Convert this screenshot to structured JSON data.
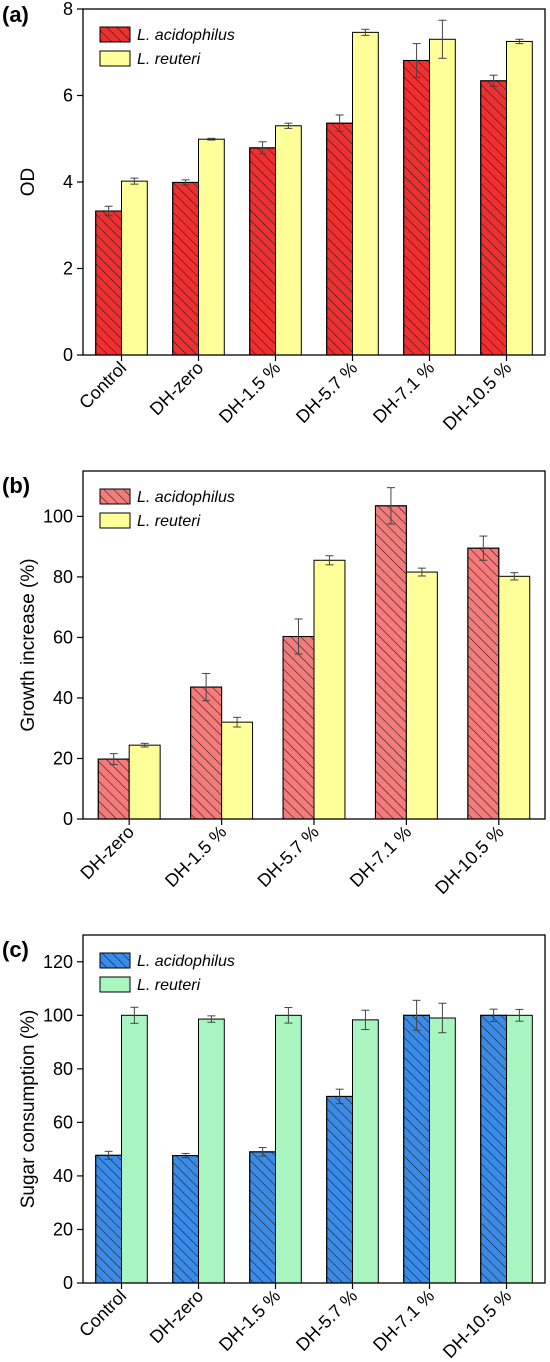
{
  "chart_data": [
    {
      "panel_label": "(a)",
      "type": "bar",
      "ylabel": "OD",
      "xlabel": "",
      "ylim": [
        0,
        8
      ],
      "yticks": [
        0,
        2,
        4,
        6,
        8
      ],
      "categories": [
        "Control",
        "DH-zero",
        "DH-1.5 %",
        "DH-5.7 %",
        "DH-7.1 %",
        "DH-10.5 %"
      ],
      "series": [
        {
          "name": "L. acidophilus",
          "values": [
            3.33,
            3.99,
            4.79,
            5.36,
            6.81,
            6.34
          ],
          "errors": [
            0.11,
            0.06,
            0.14,
            0.19,
            0.39,
            0.13
          ],
          "color": "#f03030",
          "hatch": "backslash"
        },
        {
          "name": "L. reuteri",
          "values": [
            4.02,
            4.99,
            5.3,
            7.46,
            7.3,
            7.25
          ],
          "errors": [
            0.07,
            0.02,
            0.06,
            0.07,
            0.44,
            0.05
          ],
          "color": "#ffff99",
          "hatch": "none"
        }
      ],
      "legend": "top-left",
      "grid": false
    },
    {
      "panel_label": "(b)",
      "type": "bar",
      "ylabel": "Growth increase (%)",
      "xlabel": "",
      "ylim": [
        0,
        115
      ],
      "yticks": [
        0,
        20,
        40,
        60,
        80,
        100
      ],
      "categories": [
        "DH-zero",
        "DH-1.5 %",
        "DH-5.7 %",
        "DH-7.1 %",
        "DH-10.5 %"
      ],
      "series": [
        {
          "name": "L. acidophilus",
          "values": [
            19.8,
            43.6,
            60.3,
            103.5,
            89.5
          ],
          "errors": [
            1.8,
            4.5,
            5.8,
            6.0,
            4.0
          ],
          "color": "#f57a7a",
          "hatch": "backslash"
        },
        {
          "name": "L. reuteri",
          "values": [
            24.4,
            32.0,
            85.5,
            81.6,
            80.2
          ],
          "errors": [
            0.6,
            1.6,
            1.5,
            1.3,
            1.2
          ],
          "color": "#ffff99",
          "hatch": "none"
        }
      ],
      "legend": "top-left",
      "grid": false
    },
    {
      "panel_label": "(c)",
      "type": "bar",
      "ylabel": "Sugar consumption (%)",
      "xlabel": "",
      "ylim": [
        0,
        130
      ],
      "yticks": [
        0,
        20,
        40,
        60,
        80,
        100,
        120
      ],
      "categories": [
        "Control",
        "DH-zero",
        "DH-1.5 %",
        "DH-5.7 %",
        "DH-7.1 %",
        "DH-10.5 %"
      ],
      "series": [
        {
          "name": "L. acidophilus",
          "values": [
            47.7,
            47.6,
            49.0,
            69.7,
            100.0,
            100.0
          ],
          "errors": [
            1.5,
            0.8,
            1.6,
            2.7,
            5.6,
            2.3
          ],
          "color": "#3a8be8",
          "hatch": "backslash"
        },
        {
          "name": "L. reuteri",
          "values": [
            100.0,
            98.6,
            100.0,
            98.3,
            99.0,
            100.0
          ],
          "errors": [
            3.0,
            1.2,
            2.9,
            3.6,
            5.5,
            2.2
          ],
          "color": "#a8f5c0",
          "hatch": "none"
        }
      ],
      "legend": "top-left",
      "grid": false
    }
  ]
}
